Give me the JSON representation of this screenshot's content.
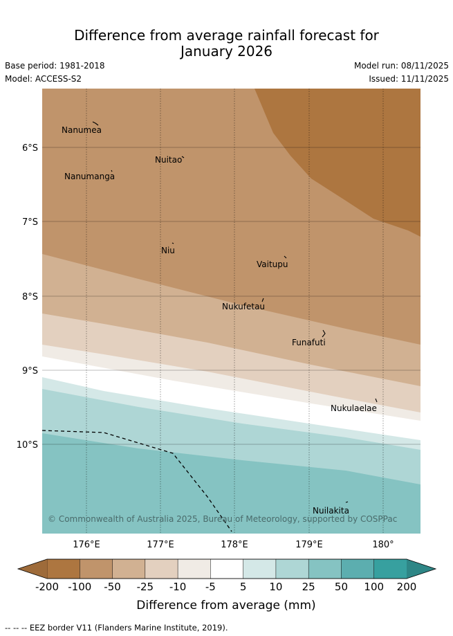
{
  "title_line1": "Difference from average rainfall forecast for",
  "title_line2": "January 2026",
  "base_period": "Base period: 1981-2018",
  "model": "Model: ACCESS-S2",
  "model_run": "Model run: 08/11/2025",
  "issued": "Issued: 11/11/2025",
  "lat_labels": [
    "6°S",
    "7°S",
    "8°S",
    "9°S",
    "10°S"
  ],
  "lon_labels": [
    "176°E",
    "177°E",
    "178°E",
    "179°E",
    "180°"
  ],
  "places": [
    "Nanumea",
    "Nuitao",
    "Nanumanga",
    "Niu",
    "Vaitupu",
    "Nukufetau",
    "Funafuti",
    "Nukulaelae",
    "Nuilakita"
  ],
  "copyright": "© Commonwealth of Australia 2025, Bureau of Meteorology, supported by COSPPac",
  "legend": {
    "ticks": [
      "-200",
      "-100",
      "-50",
      "-25",
      "-10",
      "-5",
      "5",
      "10",
      "25",
      "50",
      "100",
      "200"
    ],
    "colors": [
      "#ad7640",
      "#c0946b",
      "#d1b192",
      "#e3d0bf",
      "#f0ebe5",
      "#ffffff",
      "#d4e8e7",
      "#aed6d5",
      "#85c3c2",
      "#5caeaf",
      "#37a09f"
    ],
    "under_color": "#9e6b3a",
    "over_color": "#2e8686",
    "label": "Difference from average (mm)"
  },
  "footer": "--  --  -- EEZ border V11 (Flanders Marine Institute, 2019)."
}
